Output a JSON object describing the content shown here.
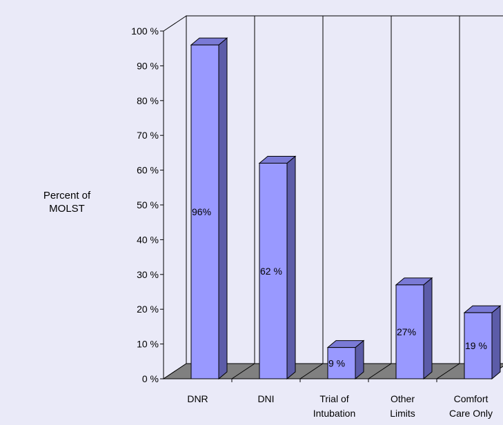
{
  "chart_data": {
    "type": "bar",
    "title": "",
    "xlabel": "",
    "ylabel": "Percent of\nMOLST",
    "categories": [
      "DNR",
      "DNI",
      "Trial of\nIntubation",
      "Other\nLimits",
      "Comfort\nCare Only"
    ],
    "values": [
      96,
      62,
      9,
      27,
      19
    ],
    "data_labels": [
      "96%",
      "62 %",
      "9 %",
      "27%",
      "19 %"
    ],
    "ylim": [
      0,
      100
    ],
    "yticks": [
      "0 %",
      "10 %",
      "20 %",
      "30 %",
      "40 %",
      "50 %",
      "60 %",
      "70 %",
      "80 %",
      "90 %",
      "100 %"
    ],
    "grid": "vertical lines between categories",
    "colors": {
      "background": "#eaeaf8",
      "bar_front": "#9999ff",
      "bar_side": "#5c5ca8",
      "bar_top": "#7a7ad6",
      "floor": "#808080",
      "walls": "#eaeaf8",
      "lines": "#000000"
    }
  }
}
